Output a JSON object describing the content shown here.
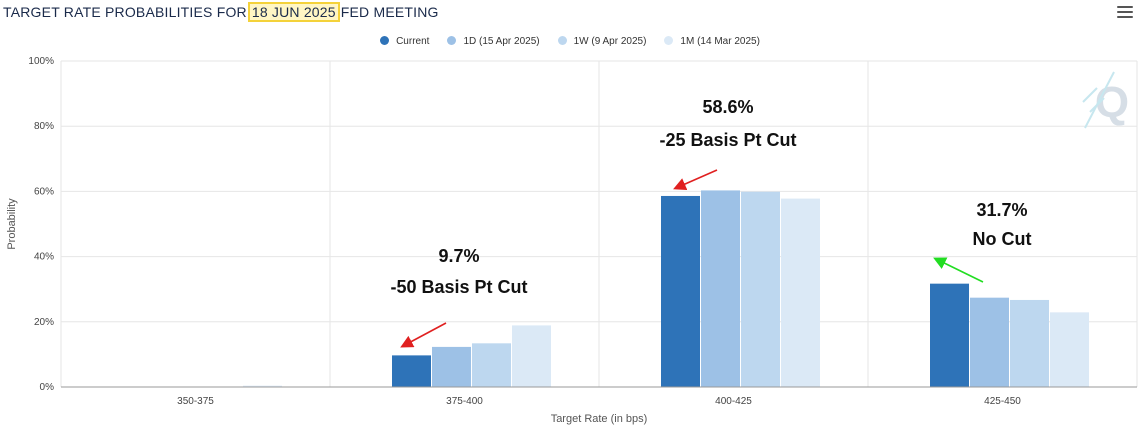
{
  "header": {
    "title_prefix": "TARGET RATE PROBABILITIES FOR",
    "title_date": "18 JUN 2025",
    "title_suffix": "FED MEETING",
    "menu_icon": "hamburger-menu-icon"
  },
  "watermark": "Q",
  "chart_data": {
    "type": "bar",
    "title": "TARGET RATE PROBABILITIES FOR 18 JUN 2025 FED MEETING",
    "xlabel": "Target Rate (in bps)",
    "ylabel": "Probability",
    "categories": [
      "350-375",
      "375-400",
      "400-425",
      "425-450"
    ],
    "ylim": [
      0,
      100
    ],
    "yticks": [
      "0%",
      "20%",
      "40%",
      "60%",
      "80%",
      "100%"
    ],
    "legend_position": "top-center",
    "grid": true,
    "series": [
      {
        "name": "Current",
        "color": "#2e73b8",
        "values": [
          0.0,
          9.7,
          58.6,
          31.7
        ]
      },
      {
        "name": "1D (15 Apr 2025)",
        "color": "#9dc1e6",
        "values": [
          0.0,
          12.3,
          60.3,
          27.4
        ]
      },
      {
        "name": "1W (9 Apr 2025)",
        "color": "#bdd7ef",
        "values": [
          0.0,
          13.4,
          59.9,
          26.7
        ]
      },
      {
        "name": "1M (14 Mar 2025)",
        "color": "#dbe9f6",
        "values": [
          0.4,
          18.9,
          57.8,
          22.9
        ]
      }
    ],
    "annotations": [
      {
        "value": "9.7%",
        "label": "-50 Basis Pt Cut",
        "category": "375-400",
        "arrow_color": "#e02020"
      },
      {
        "value": "58.6%",
        "label": "-25 Basis Pt Cut",
        "category": "400-425",
        "arrow_color": "#e02020"
      },
      {
        "value": "31.7%",
        "label": "No Cut",
        "category": "425-450",
        "arrow_color": "#22dd22"
      }
    ]
  }
}
